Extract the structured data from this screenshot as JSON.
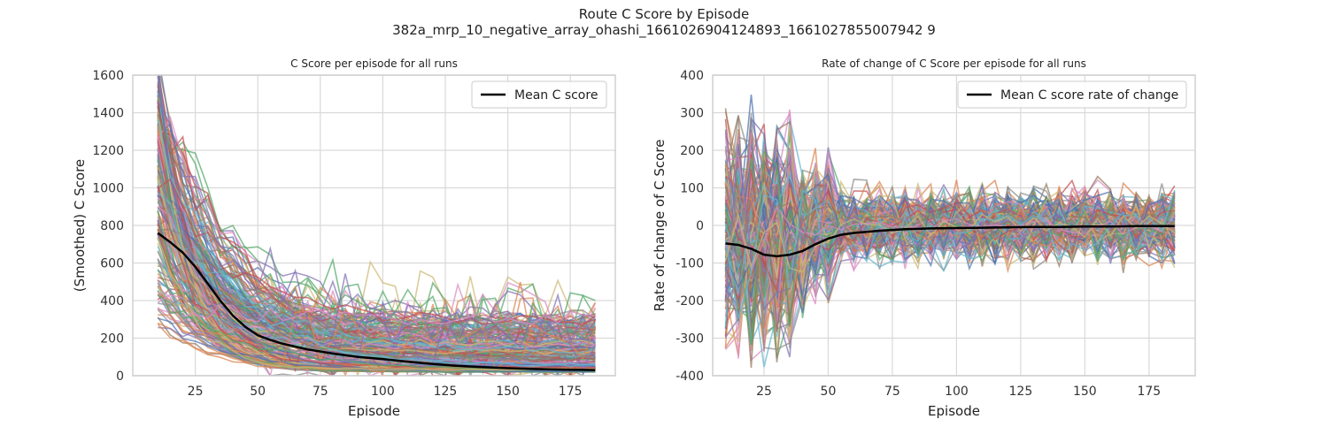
{
  "figure": {
    "suptitle": "Route C Score by Episode",
    "subtitle": "382a_mrp_10_negative_array_ohashi_1661026904124893_1661027855007942 9"
  },
  "chart_data": [
    {
      "type": "line",
      "title": "C Score per episode for all runs",
      "xlabel": "Episode",
      "ylabel": "(Smoothed) C Score",
      "xlim": [
        0,
        193
      ],
      "ylim": [
        0,
        1600
      ],
      "xticks": [
        25,
        50,
        75,
        100,
        125,
        150,
        175
      ],
      "yticks": [
        0,
        200,
        400,
        600,
        800,
        1000,
        1200,
        1400,
        1600
      ],
      "grid": true,
      "legend_position": "top-right",
      "background_runs": 220,
      "series": [
        {
          "name": "Mean C score",
          "color": "#000000",
          "x": [
            10,
            15,
            20,
            25,
            30,
            35,
            40,
            45,
            50,
            55,
            60,
            70,
            80,
            90,
            100,
            110,
            120,
            130,
            140,
            150,
            160,
            170,
            180,
            185
          ],
          "y": [
            760,
            710,
            655,
            580,
            490,
            400,
            320,
            260,
            215,
            190,
            170,
            140,
            118,
            100,
            88,
            75,
            62,
            52,
            46,
            40,
            36,
            33,
            31,
            30
          ]
        }
      ]
    },
    {
      "type": "line",
      "title": "Rate of change of C Score per episode for all runs",
      "xlabel": "Episode",
      "ylabel": "Rate of change of C Score",
      "xlim": [
        5,
        193
      ],
      "ylim": [
        -400,
        400
      ],
      "xticks": [
        25,
        50,
        75,
        100,
        125,
        150,
        175
      ],
      "yticks": [
        -400,
        -300,
        -200,
        -100,
        0,
        100,
        200,
        300,
        400
      ],
      "grid": true,
      "legend_position": "top-right",
      "background_runs": 220,
      "series": [
        {
          "name": "Mean C score rate of change",
          "color": "#000000",
          "x": [
            10,
            15,
            20,
            25,
            30,
            35,
            40,
            45,
            50,
            55,
            60,
            70,
            80,
            90,
            100,
            110,
            120,
            130,
            140,
            150,
            160,
            170,
            180,
            185
          ],
          "y": [
            -48,
            -52,
            -62,
            -78,
            -82,
            -78,
            -68,
            -50,
            -35,
            -25,
            -20,
            -14,
            -10,
            -8,
            -7,
            -6,
            -5,
            -4,
            -4,
            -3,
            -3,
            -2,
            -2,
            -2
          ]
        }
      ]
    }
  ]
}
